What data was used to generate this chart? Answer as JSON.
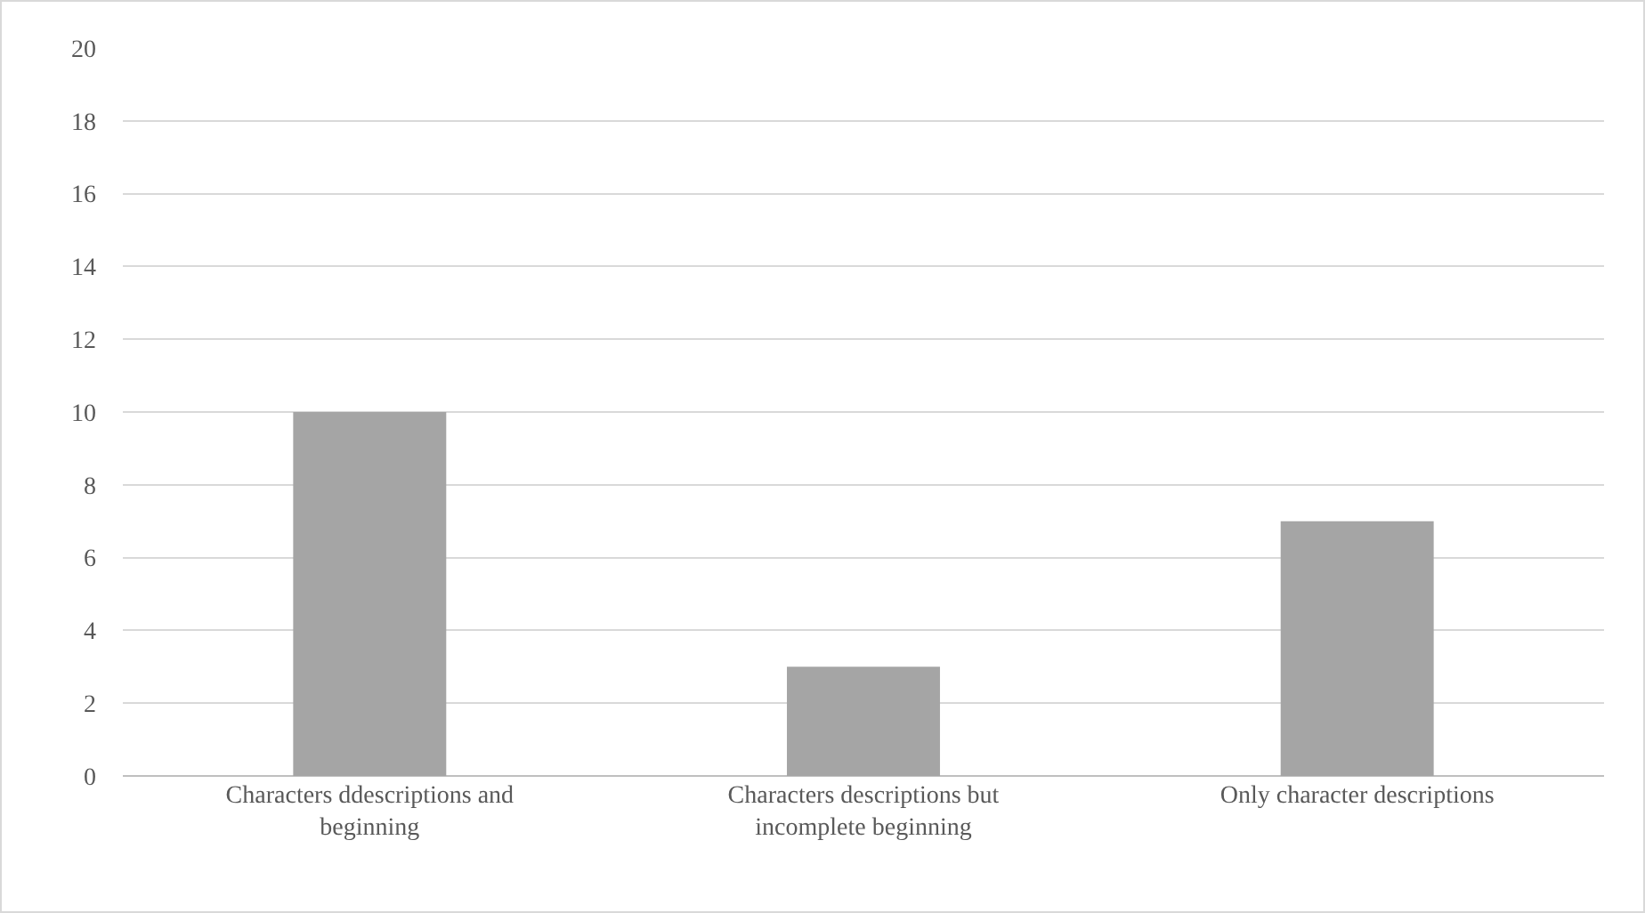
{
  "chart_data": {
    "type": "bar",
    "categories": [
      "Characters ddescriptions and beginning",
      "Characters descriptions but incomplete beginning",
      "Only character descriptions"
    ],
    "values": [
      10,
      3,
      7
    ],
    "color": "#a5a5a5",
    "ylim": [
      0,
      20
    ],
    "yticks": [
      0,
      2,
      4,
      6,
      8,
      10,
      12,
      14,
      16,
      18,
      20
    ],
    "grid": "y"
  }
}
